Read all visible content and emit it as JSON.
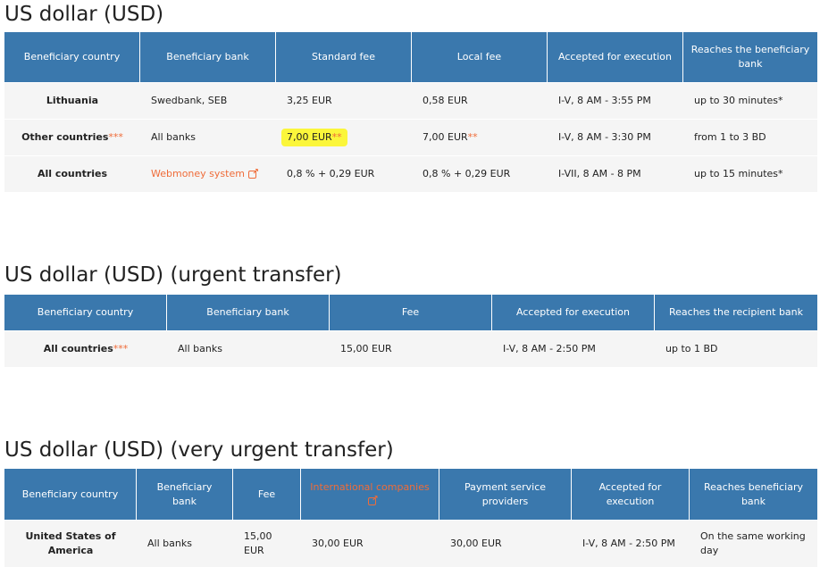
{
  "sections": [
    {
      "title": "US dollar (USD)",
      "headers": [
        "Beneficiary country",
        "Beneficiary bank",
        "Standard fee",
        "Local fee",
        "Accepted for execution",
        "Reaches the beneficiary bank"
      ],
      "rows": [
        {
          "country": "Lithuania",
          "country_mark": "",
          "bank": "Swedbank, SEB",
          "standard_fee": "3,25 EUR",
          "standard_fee_mark": "",
          "local_fee": "0,58 EUR",
          "local_fee_mark": "",
          "accepted": "I-V, 8 AM - 3:55 PM",
          "reaches": "up to 30 minutes*"
        },
        {
          "country": "Other countries",
          "country_mark": "***",
          "bank": "All banks",
          "standard_fee": "7,00 EUR",
          "standard_fee_mark": "**",
          "local_fee": "7,00 EUR",
          "local_fee_mark": "**",
          "accepted": "I-V, 8 AM - 3:30 PM",
          "reaches": "from 1 to 3 BD"
        },
        {
          "country": "All countries",
          "country_mark": "",
          "bank": "Webmoney system",
          "standard_fee": "0,8 % + 0,29 EUR",
          "standard_fee_mark": "",
          "local_fee": "0,8 % + 0,29 EUR",
          "local_fee_mark": "",
          "accepted": "I-VII, 8 AM - 8 PM",
          "reaches": "up to 15 minutes*"
        }
      ]
    },
    {
      "title": "US dollar (USD) (urgent transfer)",
      "headers": [
        "Beneficiary country",
        "Beneficiary bank",
        "Fee",
        "Accepted for execution",
        "Reaches the recipient bank"
      ],
      "rows": [
        {
          "country": "All countries",
          "country_mark": "***",
          "bank": "All banks",
          "fee": "15,00 EUR",
          "accepted": "I-V, 8 AM - 2:50 PM",
          "reaches": "up to 1 BD"
        }
      ]
    },
    {
      "title": "US dollar (USD) (very urgent transfer)",
      "headers": [
        "Beneficiary country",
        "Beneficiary bank",
        "Fee",
        "International companies",
        "Payment service providers",
        "Accepted for execution",
        "Reaches beneficiary bank"
      ],
      "rows": [
        {
          "country": "United States of America",
          "bank": "All banks",
          "fee": "15,00 EUR",
          "international": "30,00 EUR",
          "psp": "30,00 EUR",
          "accepted": "I-V, 8 AM - 2:50 PM",
          "reaches": "On the same working day"
        }
      ]
    }
  ],
  "colors": {
    "header_bg": "#3a78ad",
    "row_bg": "#f5f5f5",
    "accent": "#ef6c39",
    "highlight": "#fbf63b"
  },
  "icons": {
    "external_link": "external-link-icon"
  }
}
